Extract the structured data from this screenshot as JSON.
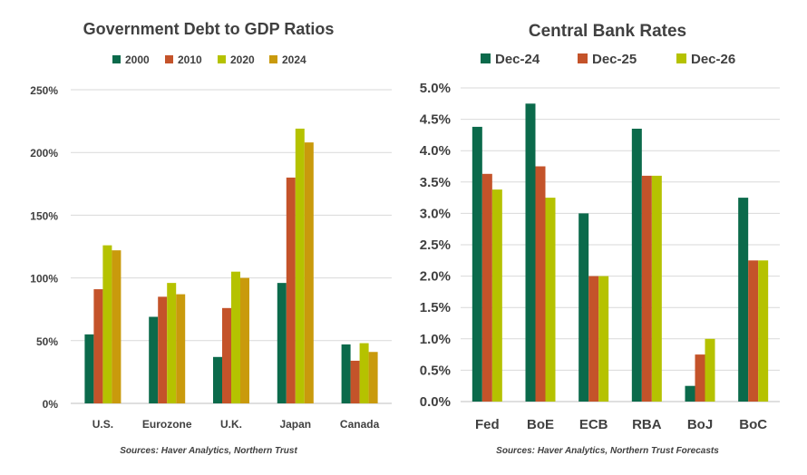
{
  "chart_data": [
    {
      "type": "bar",
      "title": "Government Debt to GDP Ratios",
      "categories": [
        "U.S.",
        "Eurozone",
        "U.K.",
        "Japan",
        "Canada"
      ],
      "series": [
        {
          "name": "2000",
          "color": "#0B6A4B",
          "values": [
            55,
            69,
            37,
            96,
            47
          ]
        },
        {
          "name": "2010",
          "color": "#C4532A",
          "values": [
            91,
            85,
            76,
            180,
            34
          ]
        },
        {
          "name": "2020",
          "color": "#B5C200",
          "values": [
            126,
            96,
            105,
            219,
            48
          ]
        },
        {
          "name": "2024",
          "color": "#C99A0C",
          "values": [
            122,
            87,
            100,
            208,
            41
          ]
        }
      ],
      "ylim": [
        0,
        250
      ],
      "yticks": [
        0,
        50,
        100,
        150,
        200,
        250
      ],
      "ytick_labels": [
        "0%",
        "50%",
        "100%",
        "150%",
        "200%",
        "250%"
      ],
      "xlabel": "",
      "ylabel": "",
      "grid": true,
      "legend": "top",
      "source": "Sources: Haver Analytics, Northern Trust"
    },
    {
      "type": "bar",
      "title": "Central Bank Rates",
      "categories": [
        "Fed",
        "BoE",
        "ECB",
        "RBA",
        "BoJ",
        "BoC"
      ],
      "series": [
        {
          "name": "Dec-24",
          "color": "#0B6A4B",
          "values": [
            4.38,
            4.75,
            3.0,
            4.35,
            0.25,
            3.25
          ]
        },
        {
          "name": "Dec-25",
          "color": "#C4532A",
          "values": [
            3.63,
            3.75,
            2.0,
            3.6,
            0.75,
            2.25
          ]
        },
        {
          "name": "Dec-26",
          "color": "#B5C200",
          "values": [
            3.38,
            3.25,
            2.0,
            3.6,
            1.0,
            2.25
          ]
        }
      ],
      "ylim": [
        0,
        5
      ],
      "yticks": [
        0,
        0.5,
        1.0,
        1.5,
        2.0,
        2.5,
        3.0,
        3.5,
        4.0,
        4.5,
        5.0
      ],
      "ytick_labels": [
        "0.0%",
        "0.5%",
        "1.0%",
        "1.5%",
        "2.0%",
        "2.5%",
        "3.0%",
        "3.5%",
        "4.0%",
        "4.5%",
        "5.0%"
      ],
      "xlabel": "",
      "ylabel": "",
      "grid": true,
      "legend": "top",
      "source": "Sources: Haver Analytics, Northern Trust Forecasts"
    }
  ]
}
